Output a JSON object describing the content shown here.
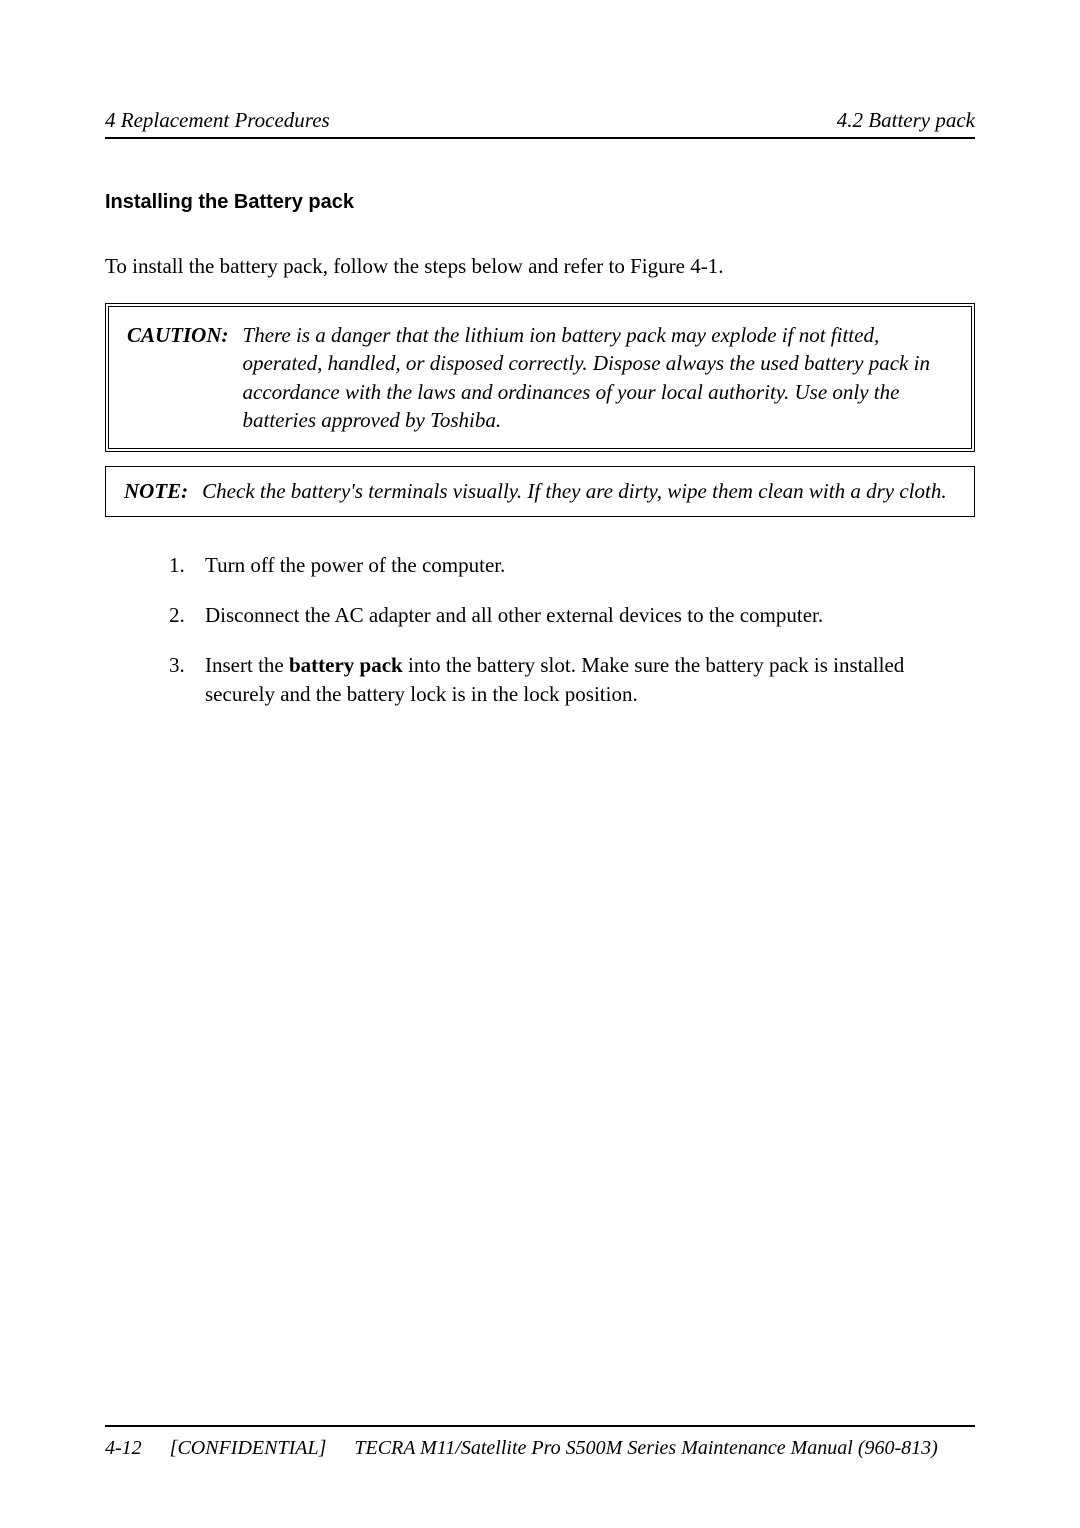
{
  "header": {
    "left": "4 Replacement Procedures",
    "right": "4.2  Battery pack"
  },
  "section_heading": "Installing the Battery pack",
  "intro": "To install the battery pack, follow the steps below and refer to Figure 4-1.",
  "caution": {
    "label": "CAUTION:",
    "text": "There is a danger that the lithium ion battery pack may explode if not fitted, operated, handled, or disposed correctly. Dispose always the used battery pack in accordance with the laws and ordinances of your local authority. Use only the batteries approved by Toshiba."
  },
  "note": {
    "label": "NOTE:",
    "text": "Check the battery's terminals visually. If they are dirty, wipe them clean with a dry cloth."
  },
  "steps": {
    "item1": "Turn off the power of the computer.",
    "item2": "Disconnect the AC adapter and all other external devices to the computer.",
    "item3_prefix": "Insert the ",
    "item3_bold": "battery pack",
    "item3_suffix": " into the battery slot. Make sure the battery pack is installed securely and the battery lock is in the lock position."
  },
  "footer": {
    "page": "4-12",
    "confidential": "[CONFIDENTIAL]",
    "title": "TECRA M11/Satellite Pro S500M Series Maintenance Manual (960-813)"
  }
}
